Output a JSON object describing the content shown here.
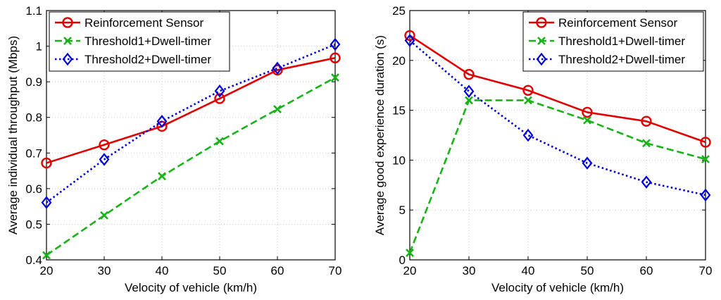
{
  "chart_data": [
    {
      "type": "line",
      "xlabel": "Velocity of vehicle (km/h)",
      "ylabel": "Average individual throughput (Mbps)",
      "x": [
        20,
        30,
        40,
        50,
        60,
        70
      ],
      "xlim": [
        20,
        70
      ],
      "ylim": [
        0.4,
        1.1
      ],
      "xticks": [
        20,
        30,
        40,
        50,
        60,
        70
      ],
      "yticks": [
        0.4,
        0.5,
        0.6,
        0.7,
        0.8,
        0.9,
        1,
        1.1
      ],
      "ytick_labels": [
        "0.4",
        "0.5",
        "0.6",
        "0.7",
        "0.8",
        "0.9",
        "1",
        "1.1"
      ],
      "grid": true,
      "legend": "top-left",
      "series": [
        {
          "name": "Reinforcement Sensor",
          "values": [
            0.672,
            0.723,
            0.775,
            0.853,
            0.933,
            0.967
          ],
          "color": "#e00000",
          "marker": "circle",
          "dash": "solid"
        },
        {
          "name": "Threshold1+Dwell-timer",
          "values": [
            0.413,
            0.525,
            0.635,
            0.733,
            0.823,
            0.912
          ],
          "color": "#17b317",
          "marker": "x",
          "dash": "dashed"
        },
        {
          "name": "Threshold2+Dwell-timer",
          "values": [
            0.561,
            0.682,
            0.789,
            0.874,
            0.938,
            1.005
          ],
          "color": "#0000dd",
          "marker": "diamond",
          "dash": "dotted"
        }
      ]
    },
    {
      "type": "line",
      "xlabel": "Velocity of vehicle (km/h)",
      "ylabel": "Average good experience duration (s)",
      "x": [
        20,
        30,
        40,
        50,
        60,
        70
      ],
      "xlim": [
        20,
        70
      ],
      "ylim": [
        0,
        25
      ],
      "xticks": [
        20,
        30,
        40,
        50,
        60,
        70
      ],
      "yticks": [
        0,
        5,
        10,
        15,
        20,
        25
      ],
      "ytick_labels": [
        "0",
        "5",
        "10",
        "15",
        "20",
        "25"
      ],
      "grid": true,
      "legend": "top-right",
      "series": [
        {
          "name": "Reinforcement Sensor",
          "values": [
            22.5,
            18.6,
            17.0,
            14.8,
            13.9,
            11.8
          ],
          "color": "#e00000",
          "marker": "circle",
          "dash": "solid"
        },
        {
          "name": "Threshold1+Dwell-timer",
          "values": [
            0.7,
            16.0,
            16.0,
            14.0,
            11.7,
            10.1
          ],
          "color": "#17b317",
          "marker": "x",
          "dash": "dashed"
        },
        {
          "name": "Threshold2+Dwell-timer",
          "values": [
            22.0,
            16.9,
            12.5,
            9.7,
            7.8,
            6.5
          ],
          "color": "#0000dd",
          "marker": "diamond",
          "dash": "dotted"
        }
      ]
    }
  ]
}
